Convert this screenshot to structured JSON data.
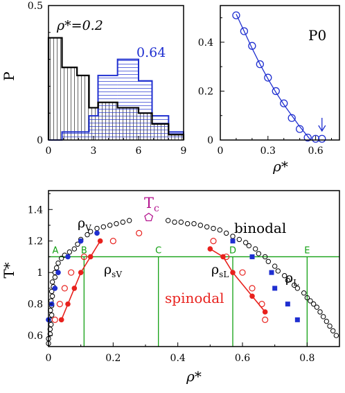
{
  "colors": {
    "black": "#000000",
    "blue": "#1f2fd0",
    "red": "#e8211d",
    "green": "#12a012",
    "magenta": "#b3158f"
  },
  "chart_data": [
    {
      "id": "histogram",
      "type": "bar",
      "ylabel": "P",
      "xlim": [
        0,
        9
      ],
      "ylim": [
        0,
        0.5
      ],
      "xticks": [
        "0",
        "3",
        "6",
        "9"
      ],
      "yticks": [
        "0",
        "0.5"
      ],
      "annotation_low": "ρ*=0.2",
      "annotation_high": "0.64",
      "bin_edges": [
        0,
        0.9,
        1.9,
        2.7,
        3.3,
        4.6,
        6.0,
        6.9,
        8.0,
        9.0
      ],
      "series": [
        {
          "name": "ρ*=0.2",
          "values": [
            0.38,
            0.27,
            0.24,
            0.12,
            0.14,
            0.12,
            0.1,
            0.06,
            0.02
          ]
        },
        {
          "name": "0.64",
          "values": [
            0.0,
            0.03,
            0.03,
            0.09,
            0.24,
            0.3,
            0.22,
            0.09,
            0.03
          ]
        }
      ]
    },
    {
      "id": "p0",
      "type": "line",
      "title": "P0",
      "xlabel": "ρ*",
      "xlim": [
        0,
        0.75
      ],
      "ylim": [
        0,
        0.55
      ],
      "xticks": [
        "0",
        "0.3",
        "0.6"
      ],
      "yticks": [
        "0",
        "0.2",
        "0.4"
      ],
      "x": [
        0.1,
        0.15,
        0.2,
        0.25,
        0.3,
        0.35,
        0.4,
        0.45,
        0.5,
        0.55,
        0.6,
        0.64
      ],
      "y": [
        0.51,
        0.445,
        0.385,
        0.31,
        0.255,
        0.2,
        0.15,
        0.09,
        0.045,
        0.01,
        0.005,
        0.005
      ],
      "fit_x": [
        0.1,
        0.15,
        0.2,
        0.25,
        0.3,
        0.35,
        0.4,
        0.45,
        0.5,
        0.55,
        0.58,
        0.6,
        0.65
      ],
      "fit_y": [
        0.515,
        0.445,
        0.375,
        0.31,
        0.25,
        0.195,
        0.145,
        0.1,
        0.055,
        0.015,
        -0.01,
        -0.03,
        -0.09
      ],
      "arrow_x": 0.64
    },
    {
      "id": "phase",
      "type": "scatter",
      "xlabel": "ρ*",
      "ylabel": "T*",
      "xlim": [
        0,
        0.9
      ],
      "ylim": [
        0.53,
        1.52
      ],
      "xticks": [
        "0",
        "0.2",
        "0.4",
        "0.6",
        "0.8"
      ],
      "yticks": [
        "0.6",
        "0.8",
        "1",
        "1.2",
        "1.4"
      ],
      "labels": {
        "rhoV": "ρV",
        "rhoL": "ρL",
        "rhosV": "ρsV",
        "rhosL": "ρsL",
        "binodal": "binodal",
        "spinodal": "spinodal",
        "Tc": "Tc"
      },
      "hline_T": 1.1,
      "vlines": [
        {
          "label": "A",
          "x": 0.0
        },
        {
          "label": "B",
          "x": 0.11
        },
        {
          "label": "C",
          "x": 0.34
        },
        {
          "label": "D",
          "x": 0.57
        },
        {
          "label": "E",
          "x": 0.8
        }
      ],
      "binodal_open": [
        [
          0.0,
          0.55
        ],
        [
          0.0,
          0.58
        ],
        [
          0.005,
          0.61
        ],
        [
          0.005,
          0.64
        ],
        [
          0.008,
          0.67
        ],
        [
          0.005,
          0.7
        ],
        [
          0.01,
          0.73
        ],
        [
          0.006,
          0.76
        ],
        [
          0.01,
          0.79
        ],
        [
          0.008,
          0.82
        ],
        [
          0.012,
          0.85
        ],
        [
          0.01,
          0.88
        ],
        [
          0.015,
          0.91
        ],
        [
          0.012,
          0.94
        ],
        [
          0.02,
          0.97
        ],
        [
          0.02,
          1.0
        ],
        [
          0.025,
          1.03
        ],
        [
          0.03,
          1.06
        ],
        [
          0.04,
          1.09
        ],
        [
          0.05,
          1.11
        ],
        [
          0.065,
          1.13
        ],
        [
          0.08,
          1.15
        ],
        [
          0.09,
          1.18
        ],
        [
          0.1,
          1.21
        ],
        [
          0.12,
          1.24
        ],
        [
          0.13,
          1.26
        ],
        [
          0.15,
          1.28
        ],
        [
          0.17,
          1.29
        ],
        [
          0.19,
          1.3
        ],
        [
          0.21,
          1.31
        ],
        [
          0.23,
          1.32
        ],
        [
          0.25,
          1.33
        ],
        [
          0.37,
          1.33
        ],
        [
          0.39,
          1.32
        ],
        [
          0.41,
          1.32
        ],
        [
          0.43,
          1.31
        ],
        [
          0.45,
          1.31
        ],
        [
          0.47,
          1.3
        ],
        [
          0.49,
          1.29
        ],
        [
          0.51,
          1.28
        ],
        [
          0.53,
          1.27
        ],
        [
          0.55,
          1.25
        ],
        [
          0.57,
          1.23
        ],
        [
          0.59,
          1.21
        ],
        [
          0.61,
          1.19
        ],
        [
          0.62,
          1.17
        ],
        [
          0.64,
          1.15
        ],
        [
          0.65,
          1.12
        ],
        [
          0.67,
          1.1
        ],
        [
          0.68,
          1.07
        ],
        [
          0.7,
          1.04
        ],
        [
          0.71,
          1.01
        ],
        [
          0.73,
          0.98
        ],
        [
          0.74,
          0.95
        ],
        [
          0.76,
          0.92
        ],
        [
          0.77,
          0.9
        ],
        [
          0.79,
          0.87
        ],
        [
          0.8,
          0.84
        ],
        [
          0.81,
          0.82
        ],
        [
          0.82,
          0.8
        ],
        [
          0.83,
          0.78
        ],
        [
          0.84,
          0.75
        ],
        [
          0.85,
          0.72
        ],
        [
          0.86,
          0.69
        ],
        [
          0.87,
          0.66
        ],
        [
          0.88,
          0.63
        ],
        [
          0.89,
          0.6
        ]
      ],
      "binodal_blue": [
        [
          0.0,
          0.7
        ],
        [
          0.01,
          0.8
        ],
        [
          0.02,
          0.9
        ],
        [
          0.03,
          1.0
        ],
        [
          0.06,
          1.1
        ],
        [
          0.1,
          1.2
        ],
        [
          0.15,
          1.25
        ]
      ],
      "binodal_blue_sq": [
        [
          0.57,
          1.2
        ],
        [
          0.63,
          1.1
        ],
        [
          0.69,
          1.0
        ],
        [
          0.7,
          0.9
        ],
        [
          0.74,
          0.8
        ],
        [
          0.77,
          0.7
        ]
      ],
      "spinodal_V_line": [
        [
          0.04,
          0.7
        ],
        [
          0.06,
          0.8
        ],
        [
          0.08,
          0.9
        ],
        [
          0.1,
          1.0
        ],
        [
          0.13,
          1.1
        ],
        [
          0.16,
          1.2
        ]
      ],
      "spinodal_V_open": [
        [
          0.02,
          0.7
        ],
        [
          0.035,
          0.8
        ],
        [
          0.05,
          0.9
        ],
        [
          0.07,
          1.0
        ],
        [
          0.11,
          1.1
        ],
        [
          0.2,
          1.2
        ],
        [
          0.28,
          1.25
        ]
      ],
      "spinodal_L_line": [
        [
          0.5,
          1.15
        ],
        [
          0.54,
          1.1
        ],
        [
          0.57,
          1.0
        ],
        [
          0.63,
          0.85
        ],
        [
          0.67,
          0.75
        ]
      ],
      "spinodal_L_open": [
        [
          0.51,
          1.2
        ],
        [
          0.55,
          1.1
        ],
        [
          0.6,
          1.0
        ],
        [
          0.63,
          0.9
        ],
        [
          0.66,
          0.8
        ],
        [
          0.67,
          0.7
        ]
      ],
      "Tc_point": [
        0.31,
        1.35
      ]
    }
  ]
}
